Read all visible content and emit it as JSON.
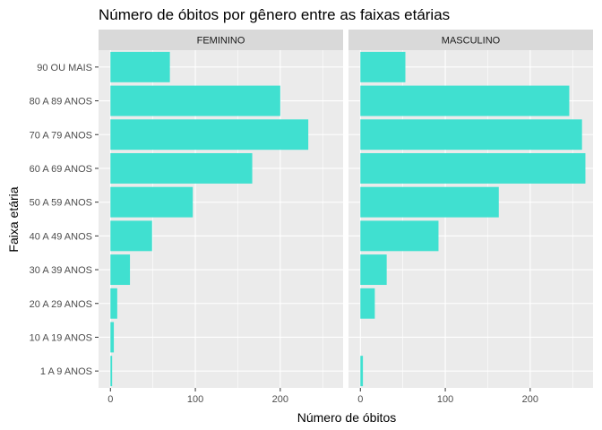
{
  "chart_data": {
    "type": "bar",
    "orientation": "horizontal",
    "title": "Número de óbitos por gênero entre as faixas etárias",
    "xlabel": "Número de óbitos",
    "ylabel": "Faixa etária",
    "xlim": [
      -14,
      274
    ],
    "xticks": [
      0,
      100,
      200
    ],
    "xtick_labels": [
      "0",
      "100",
      "200"
    ],
    "bar_color": "#40E0D0",
    "categories": [
      "90 OU MAIS",
      "80 A 89 ANOS",
      "70 A 79 ANOS",
      "60 A 69 ANOS",
      "50 A 59 ANOS",
      "40 A 49 ANOS",
      "30 A 39 ANOS",
      "20 A 29 ANOS",
      "10 A 19 ANOS",
      "1 A 9 ANOS"
    ],
    "panels": [
      {
        "name": "FEMININO",
        "values": [
          70,
          200,
          233,
          167,
          97,
          49,
          23,
          8,
          4,
          2
        ]
      },
      {
        "name": "MASCULINO",
        "values": [
          53,
          246,
          261,
          265,
          163,
          92,
          31,
          17,
          0,
          3
        ]
      }
    ]
  }
}
